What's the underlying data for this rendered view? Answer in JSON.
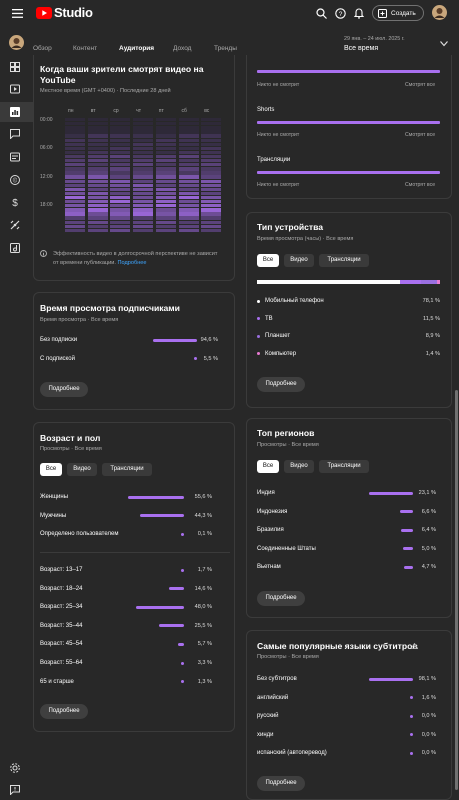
{
  "header": {
    "logo_text": "Studio",
    "create_label": "Создать"
  },
  "date_picker": {
    "range": "29 янв. – 24 июл. 2025 г.",
    "label": "Все время"
  },
  "tabs": [
    {
      "label": "Обзор"
    },
    {
      "label": "Контент"
    },
    {
      "label": "Аудитория"
    },
    {
      "label": "Доход"
    },
    {
      "label": "Тренды"
    }
  ],
  "heatmap": {
    "title": "Когда ваши зрители смотрят видео на YouTube",
    "subtitle": "Местное время (GMT +0400) · Последние 28 дней",
    "days": [
      "пн",
      "вт",
      "ср",
      "чт",
      "пт",
      "сб",
      "вс"
    ],
    "hours": [
      "00:00",
      "06:00",
      "12:00",
      "18:00"
    ],
    "note": "Эффективность видео в долгосрочной перспективе не зависит от времени публикации.",
    "note_link": "Подробнее"
  },
  "subs": {
    "title": "Время просмотра подписчиками",
    "subtitle": "Время просмотра · Все время",
    "rows": [
      {
        "label": "Без подписки",
        "pct": "94,6 %",
        "value": 94.6
      },
      {
        "label": "С подпиской",
        "pct": "5,5 %",
        "value": 5.5
      }
    ],
    "more": "Подробнее"
  },
  "age": {
    "title": "Возраст и пол",
    "subtitle": "Просмотры · Все время",
    "chips": [
      "Все",
      "Видео",
      "Трансляции"
    ],
    "gender": [
      {
        "label": "Женщины",
        "pct": "55,6 %",
        "value": 55.6
      },
      {
        "label": "Мужчины",
        "pct": "44,3 %",
        "value": 44.3
      },
      {
        "label": "Определено пользователем",
        "pct": "0,1 %",
        "value": 0.1
      }
    ],
    "ages": [
      {
        "label": "Возраст: 13–17",
        "pct": "1,7 %",
        "value": 1.7
      },
      {
        "label": "Возраст: 18–24",
        "pct": "14,6 %",
        "value": 14.6
      },
      {
        "label": "Возраст: 25–34",
        "pct": "48,0 %",
        "value": 48.0
      },
      {
        "label": "Возраст: 35–44",
        "pct": "25,5 %",
        "value": 25.5
      },
      {
        "label": "Возраст: 45–54",
        "pct": "5,7 %",
        "value": 5.7
      },
      {
        "label": "Возраст: 55–64",
        "pct": "3,3 %",
        "value": 3.3
      },
      {
        "label": "65 и старше",
        "pct": "1,3 %",
        "value": 1.3
      }
    ],
    "more": "Подробнее"
  },
  "formats": {
    "rows": [
      {
        "label": "Shorts"
      },
      {
        "label": "Трансляции"
      }
    ],
    "never": "Никто не смотрит",
    "always": "Смотрят все"
  },
  "device": {
    "title": "Тип устройства",
    "subtitle": "Время просмотра (часы) · Все время",
    "chips": [
      "Все",
      "Видео",
      "Трансляции"
    ],
    "rows": [
      {
        "label": "Мобильный телефон",
        "pct": "78,1 %",
        "value": 78.1,
        "color": "#ffffff"
      },
      {
        "label": "ТВ",
        "pct": "11,5 %",
        "value": 11.5,
        "color": "#a970ef"
      },
      {
        "label": "Планшет",
        "pct": "8,9 %",
        "value": 8.9,
        "color": "#9a6fe0"
      },
      {
        "label": "Компьютер",
        "pct": "1,4 %",
        "value": 1.4,
        "color": "#e87bd2"
      }
    ],
    "more": "Подробнее"
  },
  "regions": {
    "title": "Топ регионов",
    "subtitle": "Просмотры · Все время",
    "chips": [
      "Все",
      "Видео",
      "Трансляции"
    ],
    "rows": [
      {
        "label": "Индия",
        "pct": "23,1 %",
        "value": 23.1
      },
      {
        "label": "Индонезия",
        "pct": "6,6 %",
        "value": 6.6
      },
      {
        "label": "Бразилия",
        "pct": "6,4 %",
        "value": 6.4
      },
      {
        "label": "Соединенные Штаты",
        "pct": "5,0 %",
        "value": 5.0
      },
      {
        "label": "Вьетнам",
        "pct": "4,7 %",
        "value": 4.7
      }
    ],
    "more": "Подробнее"
  },
  "subtitles": {
    "title": "Самые популярные языки субтитров",
    "subtitle": "Просмотры · Все время",
    "rows": [
      {
        "label": "Без субтитров",
        "pct": "98,1 %",
        "value": 98.1
      },
      {
        "label": "английский",
        "pct": "1,6 %",
        "value": 1.6
      },
      {
        "label": "русский",
        "pct": "0,0 %",
        "value": 0.0
      },
      {
        "label": "хинди",
        "pct": "0,0 %",
        "value": 0.0
      },
      {
        "label": "испанский (автоперевод)",
        "pct": "0,0 %",
        "value": 0.0
      }
    ],
    "more": "Подробнее"
  },
  "colors": {
    "accent": "#a970ef",
    "bg": "#282828",
    "card_border": "#3b3b3b",
    "youtube_red": "#ff0000"
  }
}
